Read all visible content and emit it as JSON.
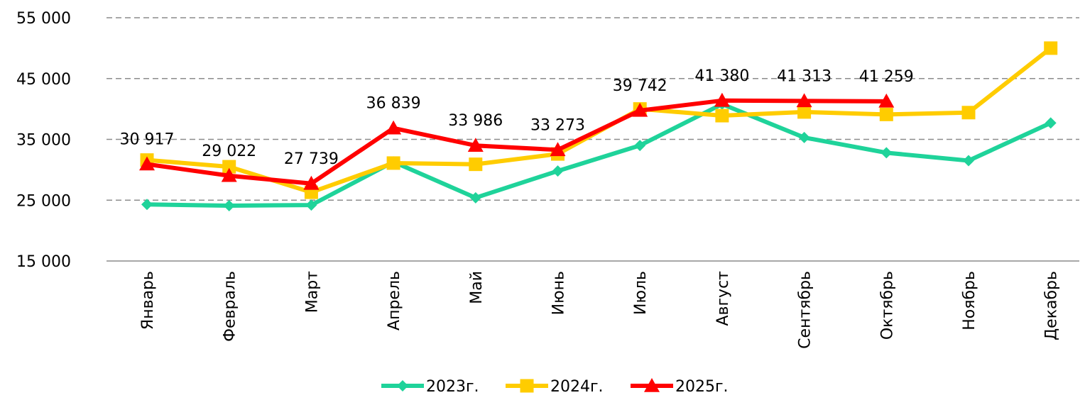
{
  "chart_data": {
    "type": "line",
    "title": "",
    "xlabel": "",
    "ylabel": "",
    "ylim": [
      15000,
      55000
    ],
    "yticks": [
      15000,
      25000,
      35000,
      45000,
      55000
    ],
    "ytick_labels": [
      "15 000",
      "25 000",
      "35 000",
      "45 000",
      "55 000"
    ],
    "grid": "horizontal dashed",
    "legend": "bottom",
    "categories": [
      "Январь",
      "Февраль",
      "Март",
      "Апрель",
      "Май",
      "Июнь",
      "Июль",
      "Август",
      "Сентябрь",
      "Октябрь",
      "Ноябрь",
      "Декабрь"
    ],
    "series": [
      {
        "name": "2023г.",
        "color": "#1fd39a",
        "marker": "diamond",
        "values": [
          24300,
          24100,
          24200,
          31300,
          25400,
          29800,
          34000,
          40800,
          35300,
          32800,
          31500,
          37700
        ]
      },
      {
        "name": "2024г.",
        "color": "#ffcc00",
        "marker": "square",
        "values": [
          31600,
          30500,
          26300,
          31100,
          30900,
          32600,
          40000,
          38900,
          39500,
          39100,
          39400,
          50000
        ]
      },
      {
        "name": "2025г.",
        "color": "#ff0000",
        "marker": "triangle",
        "values": [
          30917,
          29022,
          27739,
          36839,
          33986,
          33273,
          39742,
          41380,
          41313,
          41259,
          null,
          null
        ],
        "labels": [
          "30 917",
          "29 022",
          "27 739",
          "36 839",
          "33 986",
          "33 273",
          "39 742",
          "41 380",
          "41 313",
          "41 259",
          null,
          null
        ]
      }
    ]
  }
}
